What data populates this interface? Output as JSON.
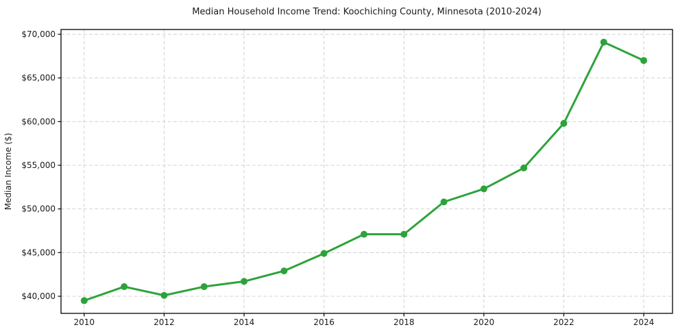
{
  "chart_data": {
    "type": "line",
    "title": "Median Household Income Trend: Koochiching County, Minnesota (2010-2024)",
    "xlabel": "",
    "ylabel": "Median Income ($)",
    "x": [
      2010,
      2011,
      2012,
      2013,
      2014,
      2015,
      2016,
      2017,
      2018,
      2019,
      2020,
      2021,
      2022,
      2023,
      2024
    ],
    "values": [
      39500,
      41100,
      40100,
      41100,
      41700,
      42900,
      44900,
      47100,
      47100,
      50800,
      52300,
      54700,
      59800,
      69100,
      67000
    ],
    "xticks": [
      2010,
      2012,
      2014,
      2016,
      2018,
      2020,
      2022,
      2024
    ],
    "xtick_labels": [
      "2010",
      "2012",
      "2014",
      "2016",
      "2018",
      "2020",
      "2022",
      "2024"
    ],
    "yticks": [
      40000,
      45000,
      50000,
      55000,
      60000,
      65000,
      70000
    ],
    "ytick_labels": [
      "$40,000",
      "$45,000",
      "$50,000",
      "$55,000",
      "$60,000",
      "$65,000",
      "$70,000"
    ],
    "xlim": [
      2009.42,
      2024.72
    ],
    "ylim": [
      38040,
      70550
    ],
    "grid": true,
    "grid_style": "dashed",
    "legend": "none",
    "colors": {
      "line": "#2ca33a",
      "marker": "#2ca33a",
      "grid": "#cccccc",
      "axis_border": "#000000",
      "tick_text": "#1a1a1a",
      "background": "#ffffff"
    }
  }
}
